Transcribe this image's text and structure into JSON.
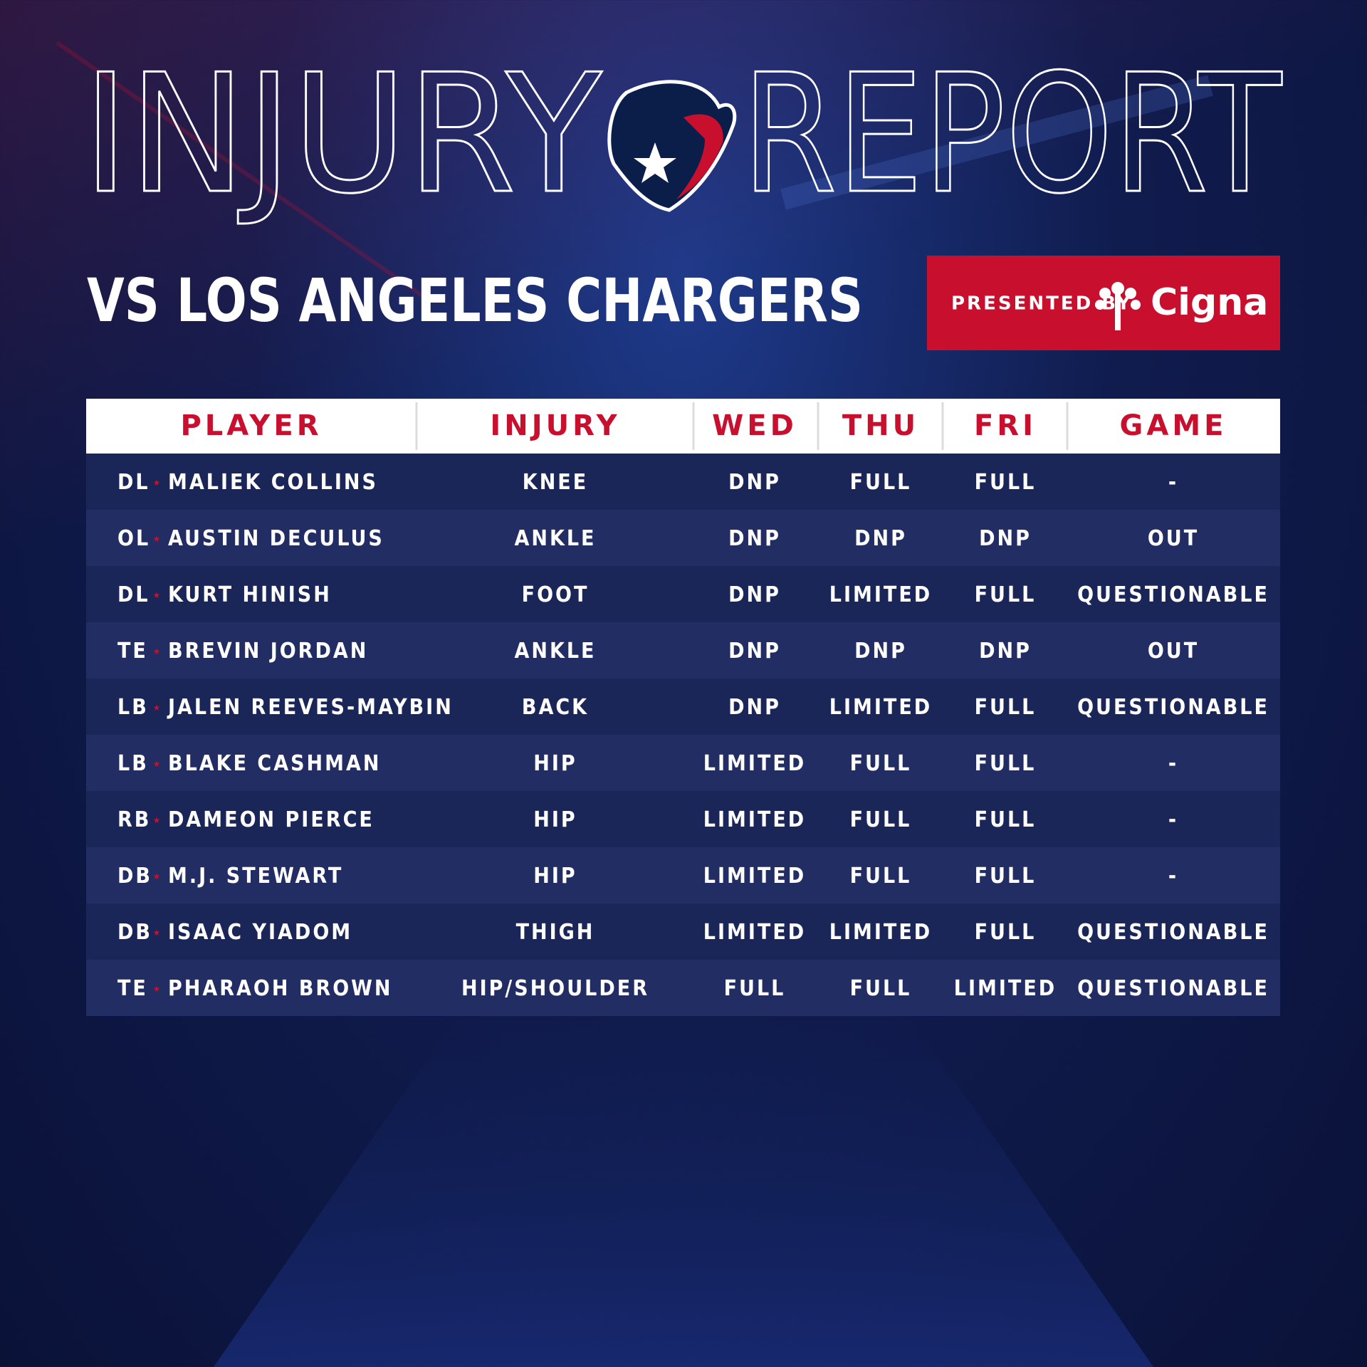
{
  "header": {
    "title_words": [
      "INJURY",
      "REPORT"
    ],
    "subtitle": "VS LOS ANGELES CHARGERS"
  },
  "sponsor": {
    "prefix": "PRESENTED BY",
    "name": "Cigna"
  },
  "table": {
    "columns": [
      "PLAYER",
      "INJURY",
      "WED",
      "THU",
      "FRI",
      "GAME"
    ],
    "rows": [
      [
        "DL",
        "MALIEK COLLINS",
        "KNEE",
        "DNP",
        "FULL",
        "FULL",
        "-"
      ],
      [
        "OL",
        "AUSTIN DECULUS",
        "ANKLE",
        "DNP",
        "DNP",
        "DNP",
        "OUT"
      ],
      [
        "DL",
        "KURT HINISH",
        "FOOT",
        "DNP",
        "LIMITED",
        "FULL",
        "QUESTIONABLE"
      ],
      [
        "TE",
        "BREVIN JORDAN",
        "ANKLE",
        "DNP",
        "DNP",
        "DNP",
        "OUT"
      ],
      [
        "LB",
        "JALEN REEVES-MAYBIN",
        "BACK",
        "DNP",
        "LIMITED",
        "FULL",
        "QUESTIONABLE"
      ],
      [
        "LB",
        "BLAKE CASHMAN",
        "HIP",
        "LIMITED",
        "FULL",
        "FULL",
        "-"
      ],
      [
        "RB",
        "DAMEON PIERCE",
        "HIP",
        "LIMITED",
        "FULL",
        "FULL",
        "-"
      ],
      [
        "DB",
        "M.J. STEWART",
        "HIP",
        "LIMITED",
        "FULL",
        "FULL",
        "-"
      ],
      [
        "DB",
        "ISAAC YIADOM",
        "THIGH",
        "LIMITED",
        "LIMITED",
        "FULL",
        "QUESTIONABLE"
      ],
      [
        "TE",
        "PHARAOH BROWN",
        "HIP/SHOULDER",
        "FULL",
        "FULL",
        "LIMITED",
        "QUESTIONABLE"
      ]
    ]
  }
}
